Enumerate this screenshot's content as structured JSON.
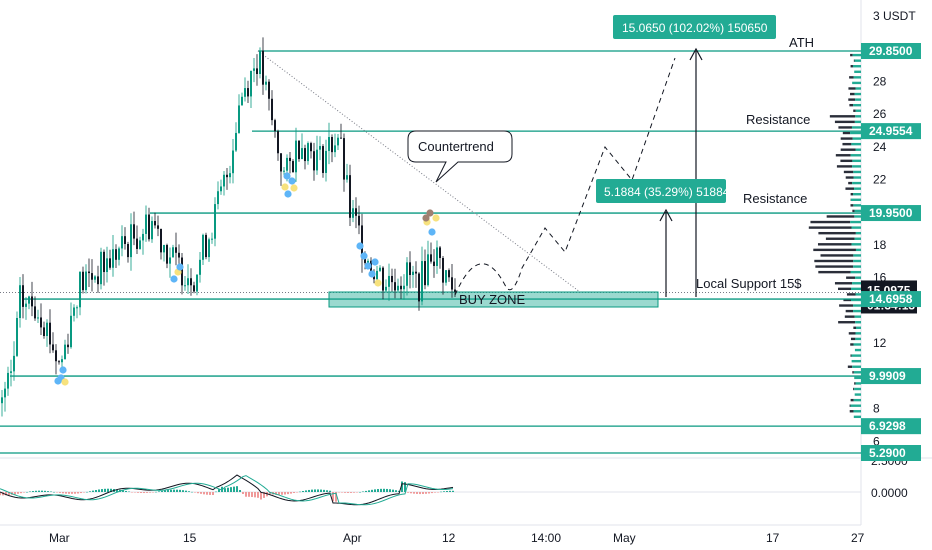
{
  "colors": {
    "accent": "#089981",
    "accent_label": "#22ab94",
    "candle_up": "#089981",
    "candle_down": "#131722",
    "volume_profile_dark": "#2a2e39",
    "volume_profile_green": "#22ab94",
    "dot_blue": "#5eb5f7",
    "dot_yellow": "#f7e27e",
    "dot_brown": "#a08070",
    "macd_line": "#131722",
    "signal_line": "#22ab94"
  },
  "price_axis": {
    "unit_label": "3 USDT",
    "ticks": [
      "28",
      "26",
      "24",
      "22",
      "20",
      "18",
      "16",
      "12",
      "8",
      "6",
      "2.5000",
      "0.0000"
    ]
  },
  "time_axis": {
    "ticks": [
      "Mar",
      "15",
      "Apr",
      "12",
      "14:00",
      "May",
      "17",
      "27"
    ]
  },
  "price_labels": [
    {
      "text": "29.8500",
      "value": 29.85
    },
    {
      "text": "24.9554",
      "value": 24.9554
    },
    {
      "text": "19.9500",
      "value": 19.95
    },
    {
      "text": "15.0975",
      "value": 15.0975,
      "sub": "01:34:13",
      "current": true
    },
    {
      "text": "14.6958",
      "value": 14.6958
    },
    {
      "text": "9.9909",
      "value": 9.9909
    },
    {
      "text": "6.9298",
      "value": 6.9298
    },
    {
      "text": "5.2900",
      "value": 5.29
    }
  ],
  "annotations": {
    "ath": "ATH",
    "resistance_1": "Resistance",
    "resistance_2": "Resistance",
    "local_support": "Local Support 15$",
    "buy_zone": "BUY ZONE",
    "countertrend": "Countertrend",
    "measure_big": "15.0650 (102.02%) 150650",
    "measure_small": "5.1884 (35.29%) 51884"
  },
  "chart_data": {
    "type": "line",
    "title": "",
    "xlabel": "",
    "ylabel": "",
    "x": [
      "Mar",
      "15",
      "Apr",
      "12",
      "14:00",
      "May"
    ],
    "series": [
      {
        "values": [
          11,
          17,
          29.5,
          21,
          15,
          29.85
        ]
      }
    ],
    "ylim": [
      4.5,
      31
    ],
    "levels": {
      "ath": 29.85,
      "resistance_1": 24.9554,
      "resistance_2": 19.95,
      "local_support": 15.0975,
      "support": 14.6958,
      "support_2": 9.9909,
      "support_3": 6.9298,
      "low": 5.29
    },
    "buy_zone": [
      14.4,
      15.25
    ],
    "projection": [
      15.1,
      17.4,
      15.0,
      19.5,
      17.3,
      24,
      21.5,
      28.5,
      29.85
    ],
    "grid": false
  }
}
